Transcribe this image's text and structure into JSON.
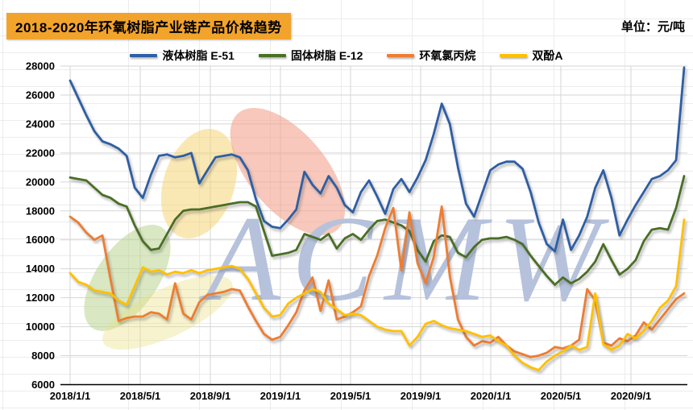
{
  "header": {
    "title": "2018-2020年环氧树脂产业链产品价格趋势",
    "unit_label": "单位：元/吨"
  },
  "watermark": {
    "text": "ACMW"
  },
  "chart_data": {
    "type": "line",
    "title": "2018-2020年环氧树脂产业链产品价格趋势",
    "unit": "元/吨",
    "grid": true,
    "legend_position": "top",
    "ylim": [
      6000,
      28000
    ],
    "y_tick_step": 2000,
    "y_tick_labels": [
      "6000",
      "8000",
      "10000",
      "12000",
      "14000",
      "16000",
      "18000",
      "20000",
      "22000",
      "24000",
      "26000",
      "28000"
    ],
    "x_tick_labels": [
      "2018/1/1",
      "2018/5/1",
      "2018/9/1",
      "2019/1/1",
      "2019/5/1",
      "2019/9/1",
      "2020/1/1",
      "2020/5/1",
      "2020/9/1"
    ],
    "x_start_date": "2018/1/1",
    "x_interval_days": 14,
    "series": [
      {
        "name": "液体树脂 E-51",
        "color": "#2E5EA4",
        "values": [
          27000,
          25800,
          24600,
          23500,
          22800,
          22600,
          22300,
          21800,
          19600,
          18900,
          20500,
          21800,
          21900,
          21700,
          21800,
          22000,
          19900,
          20800,
          21700,
          21800,
          21900,
          21700,
          20800,
          18800,
          17300,
          16900,
          16800,
          17400,
          18100,
          20700,
          19800,
          19200,
          20400,
          19600,
          18400,
          17900,
          19300,
          20100,
          19000,
          17800,
          19500,
          20200,
          19300,
          20300,
          21500,
          23300,
          25400,
          24000,
          21000,
          18500,
          17600,
          19200,
          20800,
          21200,
          21400,
          21400,
          20900,
          19300,
          17200,
          15700,
          15200,
          17400,
          15300,
          16300,
          17600,
          19600,
          20800,
          18900,
          16300,
          17400,
          18400,
          19300,
          20200,
          20400,
          20800,
          21500,
          27900
        ]
      },
      {
        "name": "固体树脂 E-12",
        "color": "#4A6E26",
        "values": [
          20300,
          20200,
          20100,
          19600,
          19100,
          18900,
          18500,
          18300,
          17000,
          15900,
          15300,
          15400,
          16400,
          17400,
          18000,
          18100,
          18100,
          18200,
          18300,
          18400,
          18500,
          18600,
          18600,
          18300,
          16600,
          14900,
          15000,
          15100,
          15300,
          16400,
          16200,
          16000,
          16400,
          15400,
          16100,
          16400,
          16000,
          16700,
          17300,
          17400,
          17200,
          17000,
          16600,
          15300,
          14500,
          15900,
          16300,
          16200,
          15100,
          14800,
          15500,
          16000,
          16100,
          16100,
          16200,
          16000,
          15700,
          14900,
          14200,
          13500,
          12900,
          13400,
          13000,
          13300,
          13800,
          14500,
          15700,
          14600,
          13600,
          14000,
          14600,
          15900,
          16700,
          16800,
          16700,
          18200,
          20400
        ]
      },
      {
        "name": "环氧氯丙烷",
        "color": "#ED7D31",
        "values": [
          17600,
          17200,
          16500,
          16000,
          16300,
          13300,
          10400,
          10600,
          10700,
          10700,
          11000,
          10900,
          10500,
          13000,
          10900,
          10500,
          11700,
          12200,
          12300,
          12400,
          12600,
          12500,
          11400,
          10400,
          9500,
          9100,
          9300,
          10100,
          11000,
          12500,
          13400,
          11100,
          13200,
          10500,
          10700,
          11000,
          11400,
          13500,
          14900,
          16800,
          18200,
          13900,
          17900,
          14400,
          13000,
          14800,
          18300,
          13500,
          10500,
          9300,
          8700,
          9000,
          8900,
          9300,
          8700,
          8300,
          8100,
          7900,
          8000,
          8200,
          8600,
          8500,
          8700,
          9100,
          12600,
          11800,
          8900,
          8700,
          9200,
          9000,
          9400,
          10300,
          9800,
          10500,
          11200,
          11900,
          12300
        ]
      },
      {
        "name": "双酚A",
        "color": "#FFC000",
        "values": [
          13700,
          13100,
          12900,
          12500,
          12400,
          12300,
          11800,
          11500,
          12800,
          14100,
          13800,
          13900,
          13600,
          13800,
          13700,
          13900,
          13700,
          13900,
          14000,
          14100,
          14200,
          14000,
          13300,
          12300,
          11300,
          10700,
          10800,
          11600,
          12000,
          12300,
          12600,
          12400,
          11600,
          11200,
          10800,
          10900,
          10800,
          10400,
          10000,
          9800,
          9700,
          9700,
          8700,
          9300,
          10200,
          10400,
          10100,
          9900,
          9800,
          9700,
          9500,
          9300,
          9400,
          9000,
          8700,
          8000,
          7500,
          7200,
          7000,
          7600,
          8000,
          8300,
          8700,
          8400,
          8600,
          12300,
          8800,
          8400,
          8700,
          9500,
          9200,
          9700,
          10400,
          11300,
          11800,
          12800,
          17400
        ]
      }
    ]
  }
}
